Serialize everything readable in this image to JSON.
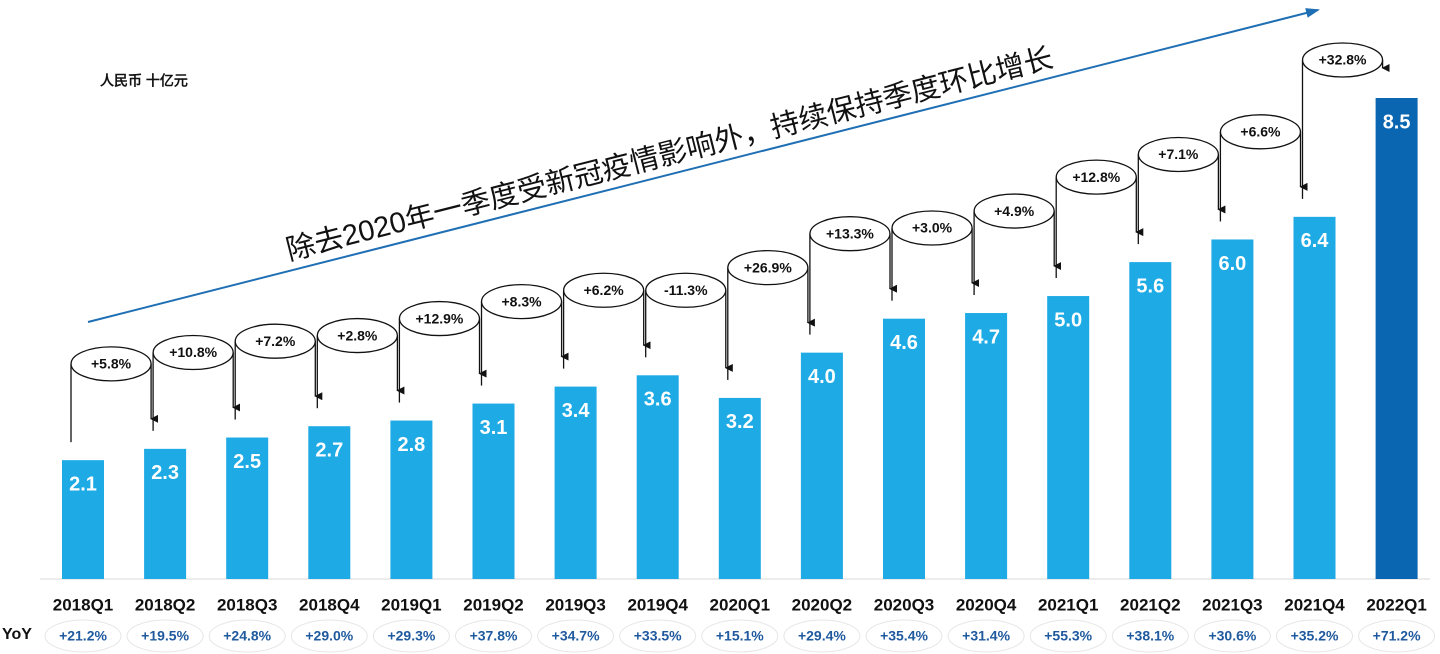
{
  "chart_data": {
    "type": "bar",
    "unit_label": "人民币 十亿元",
    "annotation": "除去2020年一季度受新冠疫情影响外，持续保持季度环比增长",
    "categories": [
      "2018Q1",
      "2018Q2",
      "2018Q3",
      "2018Q4",
      "2019Q1",
      "2019Q2",
      "2019Q3",
      "2019Q4",
      "2020Q1",
      "2020Q2",
      "2020Q3",
      "2020Q4",
      "2021Q1",
      "2021Q2",
      "2021Q3",
      "2021Q4",
      "2022Q1"
    ],
    "values": [
      2.1,
      2.3,
      2.5,
      2.7,
      2.8,
      3.1,
      3.4,
      3.6,
      3.2,
      4.0,
      4.6,
      4.7,
      5.0,
      5.6,
      6.0,
      6.4,
      8.5
    ],
    "value_labels": [
      "2.1",
      "2.3",
      "2.5",
      "2.7",
      "2.8",
      "3.1",
      "3.4",
      "3.6",
      "3.2",
      "4.0",
      "4.6",
      "4.7",
      "5.0",
      "5.6",
      "6.0",
      "6.4",
      "8.5"
    ],
    "colors": [
      "#1eaae4",
      "#1eaae4",
      "#1eaae4",
      "#1eaae4",
      "#1eaae4",
      "#1eaae4",
      "#1eaae4",
      "#1eaae4",
      "#1eaae4",
      "#1eaae4",
      "#1eaae4",
      "#1eaae4",
      "#1eaae4",
      "#1eaae4",
      "#1eaae4",
      "#1eaae4",
      "#0b66b2"
    ],
    "qoq_values": [
      5.8,
      10.8,
      7.2,
      2.8,
      12.9,
      8.3,
      6.2,
      -11.3,
      26.9,
      13.3,
      3.0,
      4.9,
      12.8,
      7.1,
      6.6,
      32.8
    ],
    "qoq_labels": [
      "+5.8%",
      "+10.8%",
      "+7.2%",
      "+2.8%",
      "+12.9%",
      "+8.3%",
      "+6.2%",
      "-11.3%",
      "+26.9%",
      "+13.3%",
      "+3.0%",
      "+4.9%",
      "+12.8%",
      "+7.1%",
      "+6.6%",
      "+32.8%"
    ],
    "yoy_label": "YoY",
    "yoy_values": [
      21.2,
      19.5,
      24.8,
      29.0,
      29.3,
      37.8,
      34.7,
      33.5,
      15.1,
      29.4,
      35.4,
      31.4,
      55.3,
      38.1,
      30.6,
      35.2,
      71.2
    ],
    "yoy_labels": [
      "+21.2%",
      "+19.5%",
      "+24.8%",
      "+29.0%",
      "+29.3%",
      "+37.8%",
      "+34.7%",
      "+33.5%",
      "+15.1%",
      "+29.4%",
      "+35.4%",
      "+31.4%",
      "+55.3%",
      "+38.1%",
      "+30.6%",
      "+35.2%",
      "+71.2%"
    ]
  }
}
